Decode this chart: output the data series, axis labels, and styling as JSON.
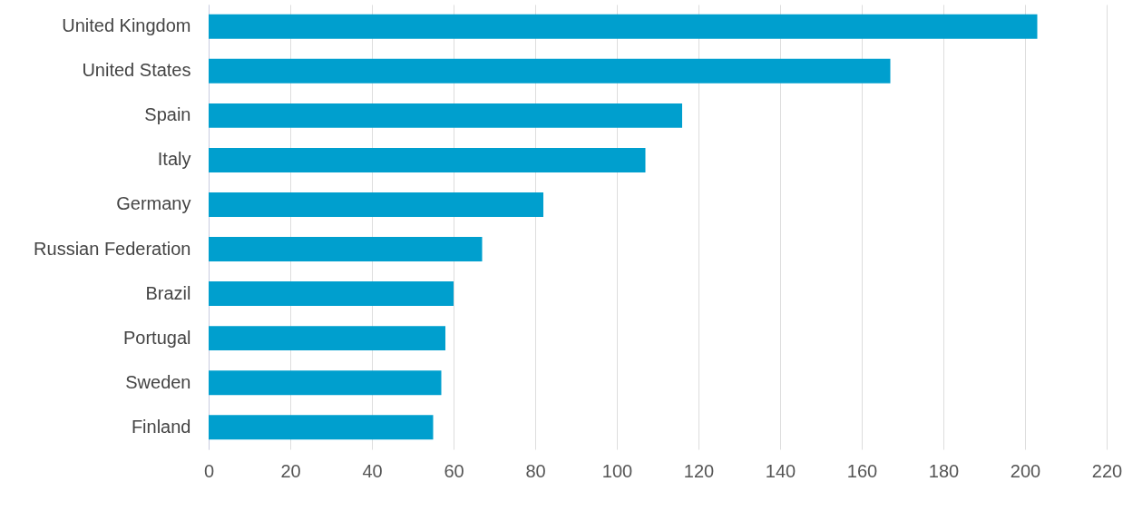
{
  "chart_data": {
    "type": "bar",
    "orientation": "horizontal",
    "categories": [
      "United Kingdom",
      "United States",
      "Spain",
      "Italy",
      "Germany",
      "Russian Federation",
      "Brazil",
      "Portugal",
      "Sweden",
      "Finland"
    ],
    "values": [
      203,
      167,
      116,
      107,
      82,
      67,
      60,
      58,
      57,
      55
    ],
    "color": "#009fce",
    "xlim": [
      0,
      220
    ],
    "xticks": [
      0,
      20,
      40,
      60,
      80,
      100,
      120,
      140,
      160,
      180,
      200,
      220
    ],
    "grid": "x"
  }
}
